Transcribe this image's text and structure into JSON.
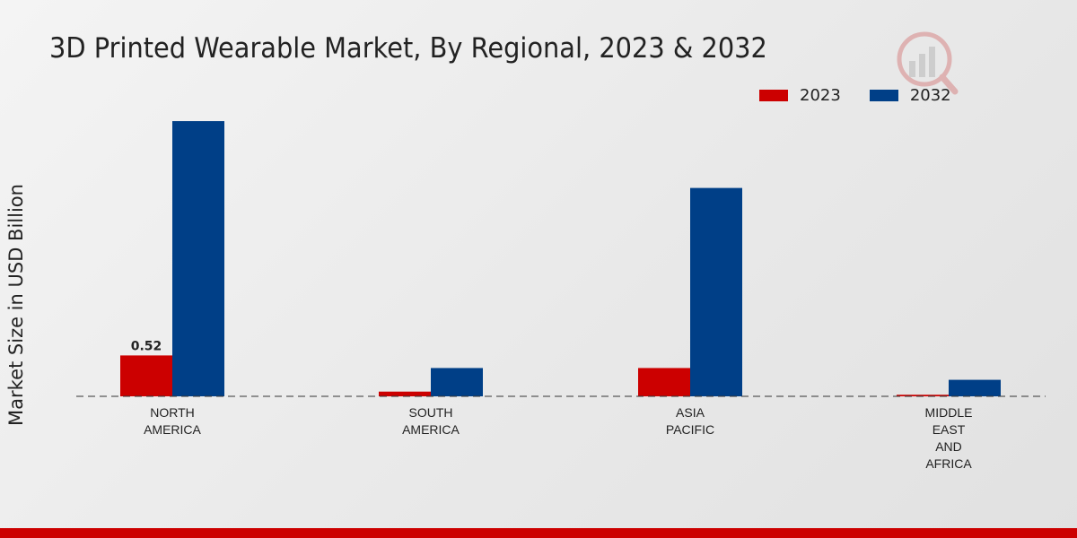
{
  "title": "3D Printed Wearable Market, By Regional, 2023 & 2032",
  "colors": {
    "s2023": "#cc0000",
    "s2032": "#003f87",
    "footer_bar": "#cc0000"
  },
  "chart_data": {
    "type": "bar",
    "title": "3D Printed Wearable Market, By Regional, 2023 & 2032",
    "xlabel": "",
    "ylabel": "Market Size in USD Billion",
    "categories": [
      [
        "NORTH",
        "AMERICA"
      ],
      [
        "SOUTH",
        "AMERICA"
      ],
      [
        "ASIA",
        "PACIFIC"
      ],
      [
        "MIDDLE",
        "EAST",
        "AND",
        "AFRICA"
      ]
    ],
    "series": [
      {
        "name": "2023",
        "color": "#cc0000",
        "values": [
          0.52,
          0.06,
          0.36,
          0.02
        ],
        "labels": [
          "0.52",
          null,
          null,
          null
        ]
      },
      {
        "name": "2032",
        "color": "#003f87",
        "values": [
          3.5,
          0.36,
          2.65,
          0.21
        ],
        "labels": [
          null,
          null,
          null,
          null
        ]
      }
    ],
    "ylim": [
      0,
      3.9
    ],
    "grid": false,
    "legend_position": "top-right"
  }
}
